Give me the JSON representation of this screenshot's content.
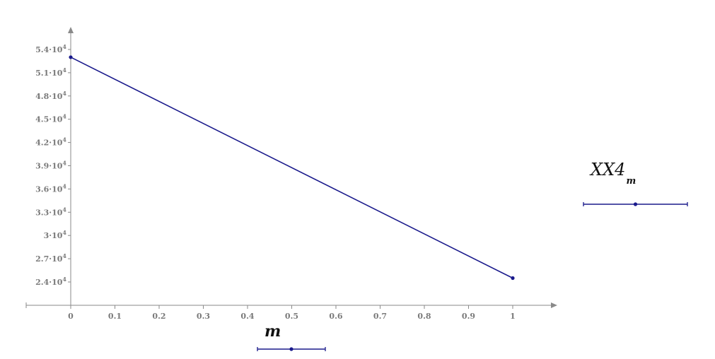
{
  "chart_data": {
    "type": "line",
    "x": [
      0,
      1
    ],
    "series": [
      {
        "name": "XX4_m",
        "values": [
          53000,
          24500
        ],
        "color": "#1a1a8c"
      }
    ],
    "xlabel": "m",
    "ylabel": "",
    "xlim": [
      0,
      1
    ],
    "ylim": [
      24000,
      54000
    ],
    "x_ticks": [
      {
        "value": 0,
        "label": "0"
      },
      {
        "value": 0.1,
        "label": "0.1"
      },
      {
        "value": 0.2,
        "label": "0.2"
      },
      {
        "value": 0.3,
        "label": "0.3"
      },
      {
        "value": 0.4,
        "label": "0.4"
      },
      {
        "value": 0.5,
        "label": "0.5"
      },
      {
        "value": 0.6,
        "label": "0.6"
      },
      {
        "value": 0.7,
        "label": "0.7"
      },
      {
        "value": 0.8,
        "label": "0.8"
      },
      {
        "value": 0.9,
        "label": "0.9"
      },
      {
        "value": 1,
        "label": "1"
      }
    ],
    "y_ticks": [
      {
        "value": 24000,
        "mantissa": "2.4",
        "exp": "4"
      },
      {
        "value": 27000,
        "mantissa": "2.7",
        "exp": "4"
      },
      {
        "value": 30000,
        "mantissa": "3",
        "exp": "4"
      },
      {
        "value": 33000,
        "mantissa": "3.3",
        "exp": "4"
      },
      {
        "value": 36000,
        "mantissa": "3.6",
        "exp": "4"
      },
      {
        "value": 39000,
        "mantissa": "3.9",
        "exp": "4"
      },
      {
        "value": 42000,
        "mantissa": "4.2",
        "exp": "4"
      },
      {
        "value": 45000,
        "mantissa": "4.5",
        "exp": "4"
      },
      {
        "value": 48000,
        "mantissa": "4.8",
        "exp": "4"
      },
      {
        "value": 51000,
        "mantissa": "5.1",
        "exp": "4"
      },
      {
        "value": 54000,
        "mantissa": "5.4",
        "exp": "4"
      }
    ],
    "grid": false,
    "legend_placement": "right",
    "legend": {
      "main": "XX4",
      "sub": "m"
    }
  }
}
